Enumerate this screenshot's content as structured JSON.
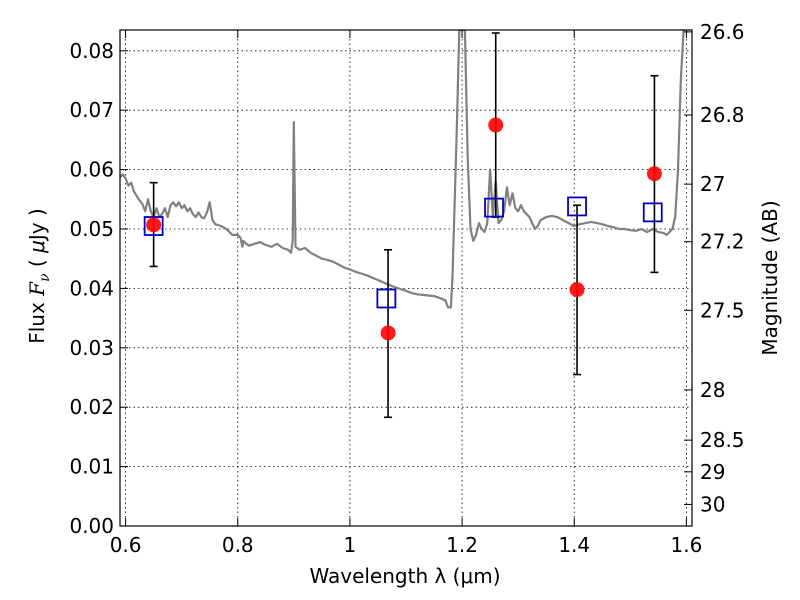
{
  "chart_data": {
    "type": "scatter",
    "title": "",
    "xlabel": "Wavelength  λ (μm)",
    "ylabel": "Flux  F_ν  ( μJy )",
    "ylabel_parts": [
      "Flux  ",
      "F",
      "ν",
      "  ( ",
      "μ",
      "Jy )"
    ],
    "y2label": "Magnitude (AB)",
    "xlim": [
      0.59,
      1.61
    ],
    "ylim": [
      0.0,
      0.0835
    ],
    "grid": true,
    "x_ticks": [
      {
        "value": 0.6,
        "label": "0.6"
      },
      {
        "value": 0.8,
        "label": "0.8"
      },
      {
        "value": 1.0,
        "label": "1"
      },
      {
        "value": 1.2,
        "label": "1.2"
      },
      {
        "value": 1.4,
        "label": "1.4"
      },
      {
        "value": 1.6,
        "label": "1.6"
      }
    ],
    "y_ticks": [
      {
        "value": 0.0,
        "label": "0.00"
      },
      {
        "value": 0.01,
        "label": "0.01"
      },
      {
        "value": 0.02,
        "label": "0.02"
      },
      {
        "value": 0.03,
        "label": "0.03"
      },
      {
        "value": 0.04,
        "label": "0.04"
      },
      {
        "value": 0.05,
        "label": "0.05"
      },
      {
        "value": 0.06,
        "label": "0.06"
      },
      {
        "value": 0.07,
        "label": "0.07"
      },
      {
        "value": 0.08,
        "label": "0.08"
      }
    ],
    "y2_ticks": [
      {
        "mag": 26.6,
        "label": "26.6"
      },
      {
        "mag": 26.8,
        "label": "26.8"
      },
      {
        "mag": 27.0,
        "label": "27"
      },
      {
        "mag": 27.2,
        "label": "27.2"
      },
      {
        "mag": 27.5,
        "label": "27.5"
      },
      {
        "mag": 28.0,
        "label": "28"
      },
      {
        "mag": 28.5,
        "label": "28.5"
      },
      {
        "mag": 29.0,
        "label": "29"
      },
      {
        "mag": 30.0,
        "label": "30"
      }
    ],
    "series": [
      {
        "name": "Model SED",
        "kind": "line",
        "color": "#808080",
        "points": [
          [
            0.59,
            0.0587
          ],
          [
            0.595,
            0.0592
          ],
          [
            0.6,
            0.0585
          ],
          [
            0.605,
            0.0573
          ],
          [
            0.61,
            0.0578
          ],
          [
            0.615,
            0.0563
          ],
          [
            0.62,
            0.0555
          ],
          [
            0.625,
            0.0548
          ],
          [
            0.63,
            0.0542
          ],
          [
            0.635,
            0.053
          ],
          [
            0.64,
            0.055
          ],
          [
            0.645,
            0.053
          ],
          [
            0.65,
            0.052
          ],
          [
            0.655,
            0.0535
          ],
          [
            0.66,
            0.052
          ],
          [
            0.665,
            0.0525
          ],
          [
            0.67,
            0.0535
          ],
          [
            0.675,
            0.052
          ],
          [
            0.68,
            0.054
          ],
          [
            0.685,
            0.0545
          ],
          [
            0.69,
            0.0538
          ],
          [
            0.695,
            0.0545
          ],
          [
            0.7,
            0.0535
          ],
          [
            0.705,
            0.054
          ],
          [
            0.71,
            0.053
          ],
          [
            0.715,
            0.0535
          ],
          [
            0.72,
            0.0525
          ],
          [
            0.725,
            0.052
          ],
          [
            0.73,
            0.0528
          ],
          [
            0.735,
            0.052
          ],
          [
            0.74,
            0.0518
          ],
          [
            0.745,
            0.0528
          ],
          [
            0.75,
            0.0545
          ],
          [
            0.755,
            0.0515
          ],
          [
            0.76,
            0.0508
          ],
          [
            0.77,
            0.0505
          ],
          [
            0.78,
            0.05
          ],
          [
            0.785,
            0.0495
          ],
          [
            0.79,
            0.049
          ],
          [
            0.8,
            0.049
          ],
          [
            0.805,
            0.0485
          ],
          [
            0.808,
            0.047
          ],
          [
            0.81,
            0.048
          ],
          [
            0.815,
            0.0475
          ],
          [
            0.82,
            0.0472
          ],
          [
            0.83,
            0.0475
          ],
          [
            0.84,
            0.0478
          ],
          [
            0.85,
            0.0473
          ],
          [
            0.86,
            0.047
          ],
          [
            0.87,
            0.0475
          ],
          [
            0.88,
            0.0468
          ],
          [
            0.89,
            0.0465
          ],
          [
            0.895,
            0.046
          ],
          [
            0.898,
            0.048
          ],
          [
            0.9,
            0.068
          ],
          [
            0.903,
            0.047
          ],
          [
            0.91,
            0.0465
          ],
          [
            0.92,
            0.0468
          ],
          [
            0.93,
            0.046
          ],
          [
            0.94,
            0.0455
          ],
          [
            0.95,
            0.045
          ],
          [
            0.96,
            0.0448
          ],
          [
            0.97,
            0.0445
          ],
          [
            0.98,
            0.044
          ],
          [
            0.99,
            0.0435
          ],
          [
            1.0,
            0.0432
          ],
          [
            1.01,
            0.0428
          ],
          [
            1.02,
            0.0425
          ],
          [
            1.03,
            0.0422
          ],
          [
            1.04,
            0.0418
          ],
          [
            1.05,
            0.0414
          ],
          [
            1.06,
            0.041
          ],
          [
            1.07,
            0.0406
          ],
          [
            1.08,
            0.0402
          ],
          [
            1.09,
            0.0399
          ],
          [
            1.1,
            0.0396
          ],
          [
            1.11,
            0.0392
          ],
          [
            1.12,
            0.039
          ],
          [
            1.13,
            0.0389
          ],
          [
            1.14,
            0.0388
          ],
          [
            1.15,
            0.0387
          ],
          [
            1.16,
            0.0384
          ],
          [
            1.17,
            0.038
          ],
          [
            1.175,
            0.0368
          ],
          [
            1.18,
            0.0368
          ],
          [
            1.183,
            0.042
          ],
          [
            1.19,
            0.065
          ],
          [
            1.195,
            0.0835
          ],
          [
            1.205,
            0.0835
          ],
          [
            1.21,
            0.062
          ],
          [
            1.215,
            0.05
          ],
          [
            1.22,
            0.048
          ],
          [
            1.225,
            0.049
          ],
          [
            1.23,
            0.051
          ],
          [
            1.235,
            0.05
          ],
          [
            1.24,
            0.0495
          ],
          [
            1.245,
            0.051
          ],
          [
            1.25,
            0.06
          ],
          [
            1.255,
            0.052
          ],
          [
            1.26,
            0.058
          ],
          [
            1.265,
            0.051
          ],
          [
            1.27,
            0.0515
          ],
          [
            1.275,
            0.053
          ],
          [
            1.28,
            0.057
          ],
          [
            1.285,
            0.054
          ],
          [
            1.29,
            0.056
          ],
          [
            1.295,
            0.0535
          ],
          [
            1.3,
            0.053
          ],
          [
            1.305,
            0.054
          ],
          [
            1.31,
            0.053
          ],
          [
            1.315,
            0.0525
          ],
          [
            1.32,
            0.052
          ],
          [
            1.325,
            0.051
          ],
          [
            1.33,
            0.05
          ],
          [
            1.335,
            0.0505
          ],
          [
            1.34,
            0.0515
          ],
          [
            1.35,
            0.052
          ],
          [
            1.36,
            0.0522
          ],
          [
            1.37,
            0.052
          ],
          [
            1.38,
            0.0515
          ],
          [
            1.39,
            0.051
          ],
          [
            1.4,
            0.0505
          ],
          [
            1.41,
            0.0508
          ],
          [
            1.42,
            0.051
          ],
          [
            1.43,
            0.0512
          ],
          [
            1.44,
            0.051
          ],
          [
            1.45,
            0.0508
          ],
          [
            1.46,
            0.0505
          ],
          [
            1.47,
            0.0503
          ],
          [
            1.48,
            0.05
          ],
          [
            1.49,
            0.05
          ],
          [
            1.5,
            0.0498
          ],
          [
            1.51,
            0.0497
          ],
          [
            1.52,
            0.05
          ],
          [
            1.53,
            0.0495
          ],
          [
            1.54,
            0.05
          ],
          [
            1.55,
            0.0495
          ],
          [
            1.56,
            0.0493
          ],
          [
            1.565,
            0.049
          ],
          [
            1.57,
            0.0495
          ],
          [
            1.575,
            0.05
          ],
          [
            1.58,
            0.052
          ],
          [
            1.585,
            0.06
          ],
          [
            1.59,
            0.075
          ],
          [
            1.595,
            0.0835
          ]
        ]
      },
      {
        "name": "Observed flux",
        "kind": "points",
        "marker": "circle",
        "color": "#ff0000",
        "x": [
          0.65,
          1.068,
          1.26,
          1.405,
          1.543
        ],
        "y": [
          0.0507,
          0.0325,
          0.0675,
          0.0398,
          0.0593
        ],
        "yerr_low": [
          0.0437,
          0.0183,
          0.052,
          0.0255,
          0.0427
        ],
        "yerr_high": [
          0.0578,
          0.0465,
          0.083,
          0.054,
          0.0758
        ]
      },
      {
        "name": "Model flux",
        "kind": "points",
        "marker": "square-open",
        "color": "#0000cc",
        "x": [
          0.65,
          1.065,
          1.257,
          1.405,
          1.54
        ],
        "y": [
          0.0505,
          0.0383,
          0.0536,
          0.0538,
          0.0528
        ]
      }
    ]
  }
}
